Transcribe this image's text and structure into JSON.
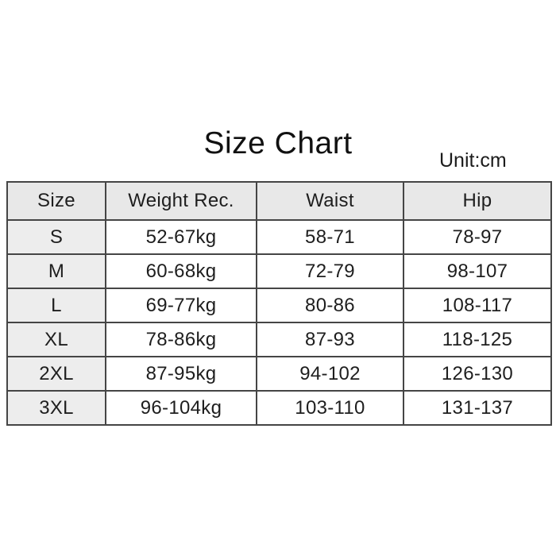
{
  "title": "Size Chart",
  "unit_label": "Unit:cm",
  "colors": {
    "page_bg": "#ffffff",
    "header_bg": "#e8e8e8",
    "size_column_bg": "#ededed",
    "cell_bg": "#ffffff",
    "border": "#454545",
    "text": "#1e1e1e"
  },
  "chart_data": {
    "type": "table",
    "title": "Size Chart",
    "unit": "Unit:cm",
    "columns": [
      "Size",
      "Weight Rec.",
      "Waist",
      "Hip"
    ],
    "rows": [
      [
        "S",
        "52-67kg",
        "58-71",
        "78-97"
      ],
      [
        "M",
        "60-68kg",
        "72-79",
        "98-107"
      ],
      [
        "L",
        "69-77kg",
        "80-86",
        "108-117"
      ],
      [
        "XL",
        "78-86kg",
        "87-93",
        "118-125"
      ],
      [
        "2XL",
        "87-95kg",
        "94-102",
        "126-130"
      ],
      [
        "3XL",
        "96-104kg",
        "103-110",
        "131-137"
      ]
    ],
    "layout_hints": {
      "header_shaded": true,
      "first_column_shaded": true,
      "grid": true
    }
  }
}
